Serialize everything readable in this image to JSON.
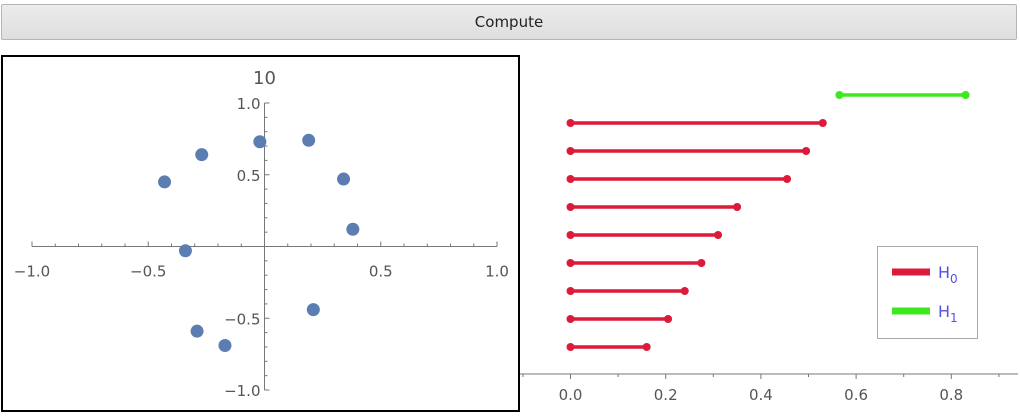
{
  "toolbar": {
    "compute_label": "Compute"
  },
  "chart_data": [
    {
      "type": "scatter",
      "title": "10",
      "xlim": [
        -1.0,
        1.0
      ],
      "ylim": [
        -1.0,
        1.0
      ],
      "x_ticks": [
        -1.0,
        -0.5,
        0.5,
        1.0
      ],
      "x_tick_labels": [
        "−1.0",
        "−0.5",
        "0.5",
        "1.0"
      ],
      "y_ticks": [
        -1.0,
        -0.5,
        0.5,
        1.0
      ],
      "y_tick_labels": [
        "−1.0",
        "−0.5",
        "0.5",
        "1.0"
      ],
      "grid": false,
      "point_color": "#5b7db1",
      "points": [
        {
          "x": -0.02,
          "y": 0.73
        },
        {
          "x": 0.19,
          "y": 0.74
        },
        {
          "x": 0.34,
          "y": 0.47
        },
        {
          "x": -0.27,
          "y": 0.64
        },
        {
          "x": -0.43,
          "y": 0.45
        },
        {
          "x": 0.38,
          "y": 0.12
        },
        {
          "x": -0.34,
          "y": -0.03
        },
        {
          "x": 0.21,
          "y": -0.44
        },
        {
          "x": -0.29,
          "y": -0.59
        },
        {
          "x": -0.17,
          "y": -0.69
        }
      ]
    },
    {
      "type": "barcode",
      "xlim": [
        -0.12,
        0.96
      ],
      "x_ticks": [
        0.0,
        0.2,
        0.4,
        0.6,
        0.8
      ],
      "x_tick_labels": [
        "0.0",
        "0.2",
        "0.4",
        "0.6",
        "0.8"
      ],
      "grid": false,
      "legend_position": "right",
      "series": [
        {
          "name": "H",
          "subscript": "0",
          "color": "#dc1a3a",
          "intervals": [
            [
              0,
              0.16
            ],
            [
              0,
              0.205
            ],
            [
              0,
              0.24
            ],
            [
              0,
              0.275
            ],
            [
              0,
              0.31
            ],
            [
              0,
              0.35
            ],
            [
              0,
              0.455
            ],
            [
              0,
              0.495
            ],
            [
              0,
              0.53
            ]
          ]
        },
        {
          "name": "H",
          "subscript": "1",
          "color": "#3de81f",
          "intervals": [
            [
              0.565,
              0.83
            ]
          ]
        }
      ]
    }
  ]
}
